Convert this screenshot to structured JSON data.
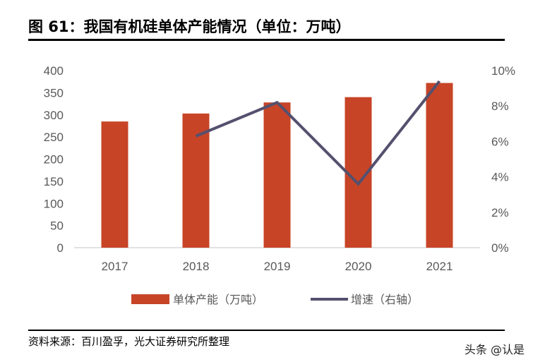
{
  "title": "图 61：我国有机硅单体产能情况（单位：万吨）",
  "source": "资料来源：百川盈孚，光大证券研究所整理",
  "watermark": "头条 @认是",
  "colors": {
    "bar": "#C74427",
    "line": "#55506E"
  },
  "chart_data": {
    "type": "bar+line",
    "categories": [
      "2017",
      "2018",
      "2019",
      "2020",
      "2021"
    ],
    "series": [
      {
        "name": "单体产能（万吨）",
        "type": "bar",
        "axis": "left",
        "values": [
          285,
          303,
          328,
          340,
          372
        ]
      },
      {
        "name": "增速（右轴）",
        "type": "line",
        "axis": "right",
        "values": [
          null,
          6.3,
          8.2,
          3.6,
          9.4
        ]
      }
    ],
    "left_axis": {
      "range": [
        0,
        400
      ],
      "ticks": [
        "0",
        "50",
        "100",
        "150",
        "200",
        "250",
        "300",
        "350",
        "400"
      ]
    },
    "right_axis": {
      "range": [
        0,
        10
      ],
      "ticks": [
        "0%",
        "2%",
        "4%",
        "6%",
        "8%",
        "10%"
      ]
    },
    "grid": false,
    "legend": "bottom"
  }
}
